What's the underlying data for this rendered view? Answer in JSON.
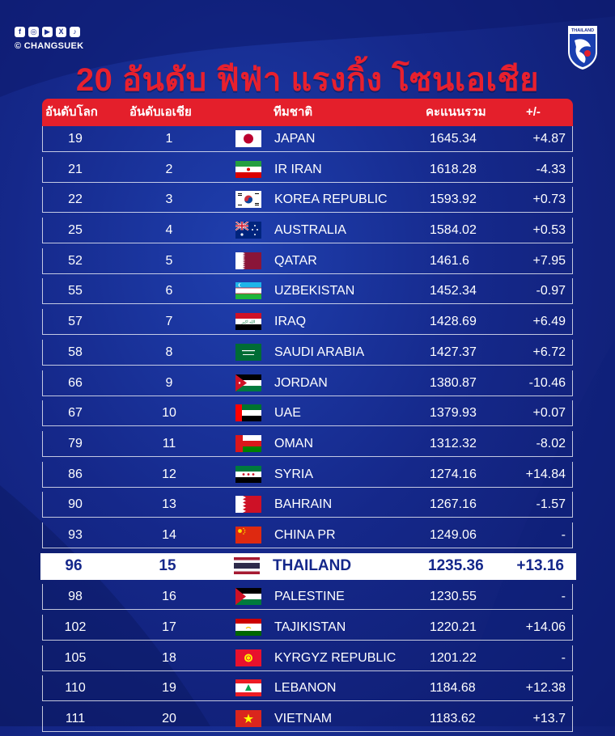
{
  "social_icons": [
    "facebook-icon",
    "instagram-icon",
    "youtube-icon",
    "x-icon",
    "tiktok-icon"
  ],
  "social_glyphs": [
    "f",
    "◎",
    "▶",
    "X",
    "♪"
  ],
  "handle": "© CHANGSUEK",
  "logo_text": "THAILAND",
  "title": "20 อันดับ ฟีฟ่า แรงกิ้ง โซนเอเชีย",
  "headers": {
    "world_rank": "อันดับโลก",
    "asia_rank": "อันดับเอเชีย",
    "team": "ทีมชาติ",
    "points": "คะแนนรวม",
    "change": "+/-"
  },
  "highlight_team": "THAILAND",
  "rows": [
    {
      "world": "19",
      "asia": "1",
      "team": "JAPAN",
      "points": "1645.34",
      "change": "+4.87",
      "flag": "japan"
    },
    {
      "world": "21",
      "asia": "2",
      "team": "IR IRAN",
      "points": "1618.28",
      "change": "-4.33",
      "flag": "iran"
    },
    {
      "world": "22",
      "asia": "3",
      "team": "KOREA REPUBLIC",
      "points": "1593.92",
      "change": "+0.73",
      "flag": "korea"
    },
    {
      "world": "25",
      "asia": "4",
      "team": "AUSTRALIA",
      "points": "1584.02",
      "change": "+0.53",
      "flag": "australia"
    },
    {
      "world": "52",
      "asia": "5",
      "team": "QATAR",
      "points": "1461.6",
      "change": "+7.95",
      "flag": "qatar"
    },
    {
      "world": "55",
      "asia": "6",
      "team": "UZBEKISTAN",
      "points": "1452.34",
      "change": "-0.97",
      "flag": "uzbekistan"
    },
    {
      "world": "57",
      "asia": "7",
      "team": "IRAQ",
      "points": "1428.69",
      "change": "+6.49",
      "flag": "iraq"
    },
    {
      "world": "58",
      "asia": "8",
      "team": "SAUDI ARABIA",
      "points": "1427.37",
      "change": "+6.72",
      "flag": "saudi"
    },
    {
      "world": "66",
      "asia": "9",
      "team": "JORDAN",
      "points": "1380.87",
      "change": "-10.46",
      "flag": "jordan"
    },
    {
      "world": "67",
      "asia": "10",
      "team": "UAE",
      "points": "1379.93",
      "change": "+0.07",
      "flag": "uae"
    },
    {
      "world": "79",
      "asia": "11",
      "team": "OMAN",
      "points": "1312.32",
      "change": "-8.02",
      "flag": "oman"
    },
    {
      "world": "86",
      "asia": "12",
      "team": "SYRIA",
      "points": "1274.16",
      "change": "+14.84",
      "flag": "syria"
    },
    {
      "world": "90",
      "asia": "13",
      "team": "BAHRAIN",
      "points": "1267.16",
      "change": "-1.57",
      "flag": "bahrain"
    },
    {
      "world": "93",
      "asia": "14",
      "team": "CHINA PR",
      "points": "1249.06",
      "change": "-",
      "flag": "china"
    },
    {
      "world": "96",
      "asia": "15",
      "team": "THAILAND",
      "points": "1235.36",
      "change": "+13.16",
      "flag": "thailand"
    },
    {
      "world": "98",
      "asia": "16",
      "team": "PALESTINE",
      "points": "1230.55",
      "change": "-",
      "flag": "palestine"
    },
    {
      "world": "102",
      "asia": "17",
      "team": "TAJIKISTAN",
      "points": "1220.21",
      "change": "+14.06",
      "flag": "tajikistan"
    },
    {
      "world": "105",
      "asia": "18",
      "team": "KYRGYZ REPUBLIC",
      "points": "1201.22",
      "change": "-",
      "flag": "kyrgyz"
    },
    {
      "world": "110",
      "asia": "19",
      "team": "LEBANON",
      "points": "1184.68",
      "change": "+12.38",
      "flag": "lebanon"
    },
    {
      "world": "111",
      "asia": "20",
      "team": "VIETNAM",
      "points": "1183.62",
      "change": "+13.7",
      "flag": "vietnam"
    }
  ]
}
